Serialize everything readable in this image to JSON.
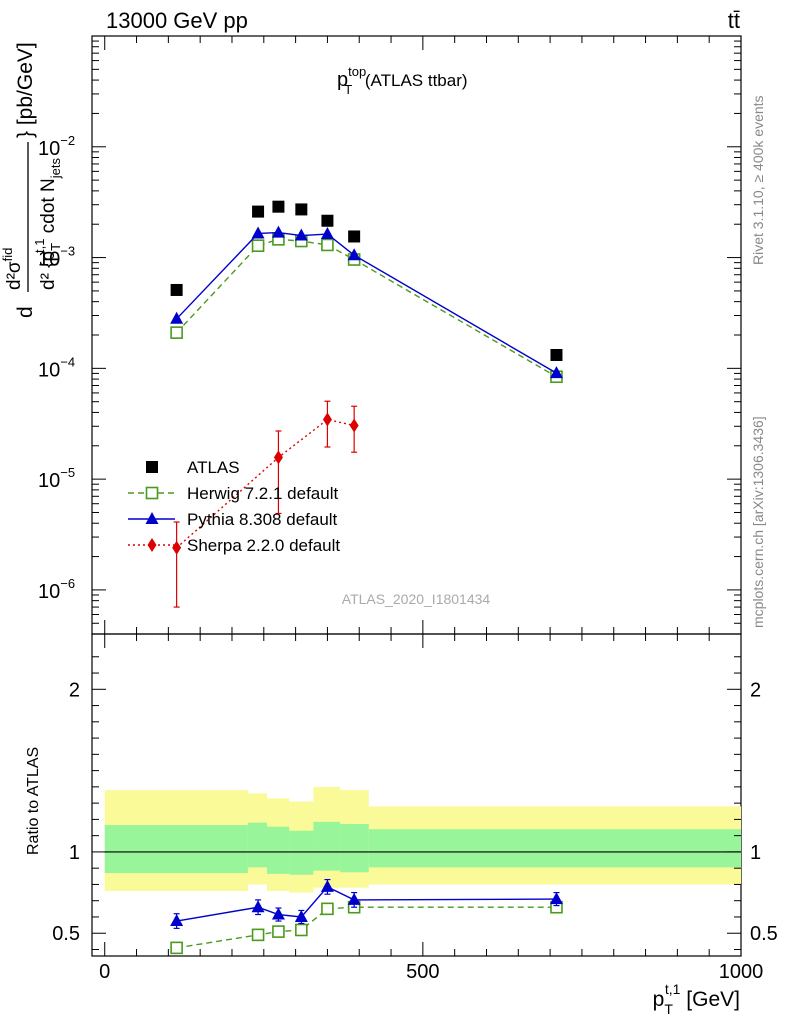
{
  "header": {
    "left": "13000 GeV pp",
    "right": "tt̄"
  },
  "side_labels": {
    "rivet": "Rivet 3.1.10, ≥ 400k events",
    "mcplots": "mcplots.cern.ch [arXiv:1306.3436]"
  },
  "chart_data": [
    {
      "type": "line",
      "panel": "main",
      "title": "p_T^top (ATLAS ttbar)",
      "title_parts": {
        "p": "p",
        "sup": "top",
        "sub": "T",
        "rest": " (ATLAS ttbar)"
      },
      "ylabel": "d²σ^fid / d²{p_T^t,1 cdot N_jets} [pb/GeV]",
      "ylabel_parts": {
        "d1": "d",
        "num": "d²σ",
        "num_sup": "fid",
        "den": "d² {p",
        "den_sub": "T",
        "den_sup": "t,1",
        "den_rest": " cdot N",
        "den_sub2": "jets",
        "den_end": "} [pb/GeV]"
      },
      "yscale": "log",
      "ylim": [
        4e-07,
        0.1
      ],
      "xlim": [
        -20,
        1000
      ],
      "ytick_labels": [
        {
          "mant": "10",
          "exp": "−6",
          "value": 1e-06
        },
        {
          "mant": "10",
          "exp": "−5",
          "value": 1e-05
        },
        {
          "mant": "10",
          "exp": "−4",
          "value": 0.0001
        },
        {
          "mant": "10",
          "exp": "−3",
          "value": 0.001
        },
        {
          "mant": "10",
          "exp": "−2",
          "value": 0.01
        }
      ],
      "watermark": "ATLAS_2020_I1801434",
      "legend_position": "lower-left",
      "series": [
        {
          "name": "ATLAS",
          "style": "data",
          "marker": "square",
          "color": "#000000",
          "x": [
            113,
            241,
            273,
            309,
            350,
            392,
            710
          ],
          "y": [
            0.00051,
            0.0026,
            0.00288,
            0.00272,
            0.00215,
            0.00155,
            0.000132
          ]
        },
        {
          "name": "Herwig 7.2.1 default",
          "style": "dashed",
          "marker": "open-square",
          "color": "#4a9a1e",
          "x": [
            113,
            241,
            273,
            309,
            350,
            392,
            710
          ],
          "y": [
            0.00021,
            0.00128,
            0.00146,
            0.00141,
            0.0013,
            0.00096,
            8.4e-05
          ]
        },
        {
          "name": "Pythia 8.308 default",
          "style": "solid",
          "marker": "triangle",
          "color": "#0000cc",
          "x": [
            113,
            241,
            273,
            309,
            350,
            392,
            710
          ],
          "y": [
            0.00028,
            0.00165,
            0.00168,
            0.00158,
            0.00163,
            0.00105,
            9.05e-05
          ]
        },
        {
          "name": "Sherpa 2.2.0 default",
          "style": "dotted",
          "marker": "diamond",
          "color": "#dd0000",
          "x": [
            113,
            273,
            350,
            392
          ],
          "y": [
            2.4e-06,
            1.57e-05,
            3.45e-05,
            3.05e-05
          ],
          "y_err_low": [
            1.7e-06,
            1.08e-05,
            1.5e-05,
            1.3e-05
          ],
          "y_err_high": [
            1.7e-06,
            1.15e-05,
            1.6e-05,
            1.5e-05
          ]
        }
      ]
    },
    {
      "type": "line",
      "panel": "ratio",
      "ylabel": "Ratio to ATLAS",
      "xlabel": "p_T^t,1 [GeV]",
      "xlabel_parts": {
        "p": "p",
        "sub": "T",
        "sup": "t,1",
        "rest": " [GeV]"
      },
      "ylim": [
        0.36,
        2.34
      ],
      "xlim": [
        -20,
        1000
      ],
      "ytick_labels": [
        {
          "label": "0.5",
          "value": 0.5
        },
        {
          "label": "1",
          "value": 1
        },
        {
          "label": "2",
          "value": 2
        }
      ],
      "xtick_labels": [
        {
          "label": "0",
          "value": 0
        },
        {
          "label": "500",
          "value": 500
        },
        {
          "label": "1000",
          "value": 1000
        }
      ],
      "bands": {
        "bins": [
          [
            0,
            225
          ],
          [
            225,
            255
          ],
          [
            255,
            290
          ],
          [
            290,
            328
          ],
          [
            328,
            370
          ],
          [
            370,
            415
          ],
          [
            415,
            1000
          ]
        ],
        "stat": [
          [
            0.87,
            1.165
          ],
          [
            0.905,
            1.18
          ],
          [
            0.865,
            1.155
          ],
          [
            0.86,
            1.13
          ],
          [
            0.885,
            1.185
          ],
          [
            0.875,
            1.172
          ],
          [
            0.905,
            1.14
          ]
        ],
        "total": [
          [
            0.76,
            1.38
          ],
          [
            0.8,
            1.36
          ],
          [
            0.76,
            1.33
          ],
          [
            0.75,
            1.31
          ],
          [
            0.78,
            1.4
          ],
          [
            0.78,
            1.38
          ],
          [
            0.8,
            1.28
          ]
        ],
        "stat_color": "#99f599",
        "total_color": "#fafa99"
      },
      "series": [
        {
          "name": "Herwig 7.2.1 default",
          "style": "dashed",
          "marker": "open-square",
          "color": "#4a9a1e",
          "x": [
            113,
            241,
            273,
            309,
            350,
            392,
            710
          ],
          "y": [
            0.41,
            0.49,
            0.51,
            0.52,
            0.65,
            0.66,
            0.66
          ],
          "y_err": [
            0.03,
            0.03,
            0.03,
            0.03,
            0.03,
            0.03,
            0.03
          ]
        },
        {
          "name": "Pythia 8.308 default",
          "style": "solid",
          "marker": "triangle",
          "color": "#0000cc",
          "x": [
            113,
            241,
            273,
            309,
            350,
            392,
            710
          ],
          "y": [
            0.575,
            0.66,
            0.615,
            0.6,
            0.785,
            0.705,
            0.71
          ],
          "y_err": [
            0.045,
            0.045,
            0.04,
            0.04,
            0.045,
            0.045,
            0.04
          ]
        }
      ]
    }
  ]
}
